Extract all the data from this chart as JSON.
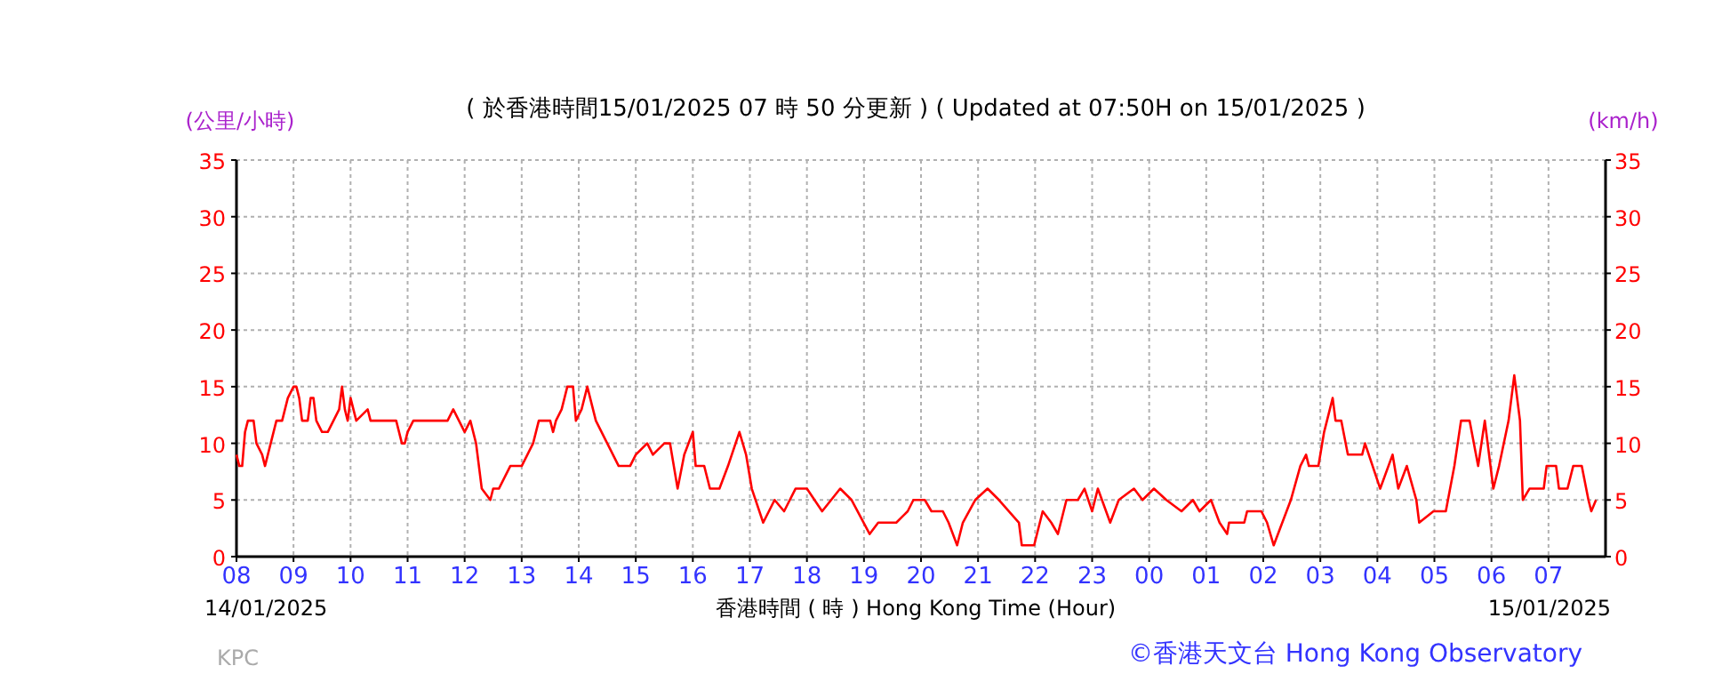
{
  "chart_data": {
    "type": "line",
    "title": "( 於香港時間15/01/2025 07 時 50 分更新 ) ( Updated at 07:50H on 15/01/2025 )",
    "xlabel": "香港時間 ( 時 ) Hong Kong Time (Hour)",
    "ylabel": "(公里/小時)",
    "y2label": "(km/h)",
    "x": [
      "2025-01-14T08:00",
      "2025-01-14T08:03",
      "2025-01-14T08:06",
      "2025-01-14T08:09",
      "2025-01-14T08:12",
      "2025-01-14T08:18",
      "2025-01-14T08:21",
      "2025-01-14T08:27",
      "2025-01-14T08:30",
      "2025-01-14T08:33",
      "2025-01-14T08:36",
      "2025-01-14T08:42",
      "2025-01-14T08:48",
      "2025-01-14T08:51",
      "2025-01-14T08:54",
      "2025-01-14T09:00",
      "2025-01-14T09:03",
      "2025-01-14T09:06",
      "2025-01-14T09:09",
      "2025-01-14T09:15",
      "2025-01-14T09:18",
      "2025-01-14T09:21",
      "2025-01-14T09:24",
      "2025-01-14T09:30",
      "2025-01-14T09:36",
      "2025-01-14T09:42",
      "2025-01-14T09:48",
      "2025-01-14T09:51",
      "2025-01-14T09:54",
      "2025-01-14T09:57",
      "2025-01-14T10:00",
      "2025-01-14T10:03",
      "2025-01-14T10:06",
      "2025-01-14T10:18",
      "2025-01-14T10:21",
      "2025-01-14T10:48",
      "2025-01-14T10:54",
      "2025-01-14T10:57",
      "2025-01-14T11:00",
      "2025-01-14T11:06",
      "2025-01-14T11:42",
      "2025-01-14T11:48",
      "2025-01-14T11:54",
      "2025-01-14T12:00",
      "2025-01-14T12:06",
      "2025-01-14T12:12",
      "2025-01-14T12:18",
      "2025-01-14T12:27",
      "2025-01-14T12:30",
      "2025-01-14T12:36",
      "2025-01-14T12:42",
      "2025-01-14T12:48",
      "2025-01-14T13:00",
      "2025-01-14T13:06",
      "2025-01-14T13:12",
      "2025-01-14T13:18",
      "2025-01-14T13:30",
      "2025-01-14T13:33",
      "2025-01-14T13:36",
      "2025-01-14T13:42",
      "2025-01-14T13:45",
      "2025-01-14T13:48",
      "2025-01-14T13:54",
      "2025-01-14T13:57",
      "2025-01-14T14:03",
      "2025-01-14T14:09",
      "2025-01-14T14:12",
      "2025-01-14T14:18",
      "2025-01-14T14:30",
      "2025-01-14T14:36",
      "2025-01-14T14:42",
      "2025-01-14T14:54",
      "2025-01-14T15:00",
      "2025-01-14T15:12",
      "2025-01-14T15:18",
      "2025-01-14T15:30",
      "2025-01-14T15:36",
      "2025-01-14T15:44",
      "2025-01-14T15:51",
      "2025-01-14T16:00",
      "2025-01-14T16:03",
      "2025-01-14T16:12",
      "2025-01-14T16:18",
      "2025-01-14T16:28",
      "2025-01-14T16:37",
      "2025-01-14T16:49",
      "2025-01-14T16:56",
      "2025-01-14T17:02",
      "2025-01-14T17:14",
      "2025-01-14T17:26",
      "2025-01-14T17:36",
      "2025-01-14T17:48",
      "2025-01-14T18:00",
      "2025-01-14T18:16",
      "2025-01-14T18:35",
      "2025-01-14T18:47",
      "2025-01-14T19:06",
      "2025-01-14T19:15",
      "2025-01-14T19:34",
      "2025-01-14T19:46",
      "2025-01-14T19:52",
      "2025-01-14T20:04",
      "2025-01-14T20:11",
      "2025-01-14T20:23",
      "2025-01-14T20:29",
      "2025-01-14T20:38",
      "2025-01-14T20:44",
      "2025-01-14T20:57",
      "2025-01-14T21:10",
      "2025-01-14T21:22",
      "2025-01-14T21:43",
      "2025-01-14T21:46",
      "2025-01-14T21:59",
      "2025-01-14T22:08",
      "2025-01-14T22:17",
      "2025-01-14T22:24",
      "2025-01-14T22:33",
      "2025-01-14T22:45",
      "2025-01-14T22:52",
      "2025-01-14T23:00",
      "2025-01-14T23:06",
      "2025-01-14T23:19",
      "2025-01-14T23:28",
      "2025-01-14T23:44",
      "2025-01-14T23:53",
      "2025-01-15T00:05",
      "2025-01-15T00:18",
      "2025-01-15T00:34",
      "2025-01-15T00:46",
      "2025-01-15T00:53",
      "2025-01-15T01:05",
      "2025-01-15T01:14",
      "2025-01-15T01:22",
      "2025-01-15T01:24",
      "2025-01-15T01:40",
      "2025-01-15T01:43",
      "2025-01-15T01:58",
      "2025-01-15T02:04",
      "2025-01-15T02:11",
      "2025-01-15T02:20",
      "2025-01-15T02:29",
      "2025-01-15T02:39",
      "2025-01-15T02:45",
      "2025-01-15T02:48",
      "2025-01-15T02:58",
      "2025-01-15T03:04",
      "2025-01-15T03:07",
      "2025-01-15T03:13",
      "2025-01-15T03:16",
      "2025-01-15T03:22",
      "2025-01-15T03:29",
      "2025-01-15T03:44",
      "2025-01-15T03:47",
      "2025-01-15T04:03",
      "2025-01-15T04:16",
      "2025-01-15T04:22",
      "2025-01-15T04:31",
      "2025-01-15T04:41",
      "2025-01-15T04:44",
      "2025-01-15T04:59",
      "2025-01-15T05:12",
      "2025-01-15T05:21",
      "2025-01-15T05:28",
      "2025-01-15T05:37",
      "2025-01-15T05:46",
      "2025-01-15T05:53",
      "2025-01-15T06:02",
      "2025-01-15T06:08",
      "2025-01-15T06:18",
      "2025-01-15T06:24",
      "2025-01-15T06:30",
      "2025-01-15T06:33",
      "2025-01-15T06:40",
      "2025-01-15T06:55",
      "2025-01-15T06:58",
      "2025-01-15T07:08",
      "2025-01-15T07:11",
      "2025-01-15T07:20",
      "2025-01-15T07:26",
      "2025-01-15T07:35",
      "2025-01-15T07:42",
      "2025-01-15T07:45",
      "2025-01-15T07:50"
    ],
    "series": [
      {
        "color": "#ff0000",
        "values": [
          9,
          8,
          8,
          11,
          12,
          12,
          10,
          9,
          8,
          9,
          10,
          12,
          12,
          13,
          14,
          15,
          15,
          14,
          12,
          12,
          14,
          14,
          12,
          11,
          11,
          12,
          13,
          15,
          13,
          12,
          14,
          13,
          12,
          13,
          12,
          12,
          10,
          10,
          11,
          12,
          12,
          13,
          12,
          11,
          12,
          10,
          6,
          5,
          6,
          6,
          7,
          8,
          8,
          9,
          10,
          12,
          12,
          11,
          12,
          13,
          14,
          15,
          15,
          12,
          13,
          15,
          14,
          12,
          10,
          9,
          8,
          8,
          9,
          10,
          9,
          10,
          10,
          6,
          9,
          11,
          8,
          8,
          6,
          6,
          8,
          11,
          9,
          6,
          3,
          5,
          4,
          6,
          6,
          4,
          6,
          5,
          2,
          3,
          3,
          4,
          5,
          5,
          4,
          4,
          3,
          1,
          3,
          5,
          6,
          5,
          3,
          1,
          1,
          4,
          3,
          2,
          5,
          5,
          6,
          4,
          6,
          3,
          5,
          6,
          5,
          6,
          5,
          4,
          5,
          4,
          5,
          3,
          2,
          3,
          3,
          4,
          4,
          3,
          1,
          3,
          5,
          8,
          9,
          8,
          8,
          11,
          12,
          14,
          12,
          12,
          9,
          9,
          10,
          6,
          9,
          6,
          8,
          5,
          3,
          4,
          4,
          8,
          12,
          12,
          8,
          12,
          6,
          8,
          12,
          16,
          12,
          5,
          6,
          6,
          8,
          8,
          6,
          6,
          8,
          8,
          5,
          4,
          5
        ]
      }
    ],
    "xlim": [
      "2025-01-14T08:00",
      "2025-01-15T08:00"
    ],
    "xticks": [
      {
        "value": "2025-01-14T08:00",
        "label": "08"
      },
      {
        "value": "2025-01-14T09:00",
        "label": "09"
      },
      {
        "value": "2025-01-14T10:00",
        "label": "10"
      },
      {
        "value": "2025-01-14T11:00",
        "label": "11"
      },
      {
        "value": "2025-01-14T12:00",
        "label": "12"
      },
      {
        "value": "2025-01-14T13:00",
        "label": "13"
      },
      {
        "value": "2025-01-14T14:00",
        "label": "14"
      },
      {
        "value": "2025-01-14T15:00",
        "label": "15"
      },
      {
        "value": "2025-01-14T16:00",
        "label": "16"
      },
      {
        "value": "2025-01-14T17:00",
        "label": "17"
      },
      {
        "value": "2025-01-14T18:00",
        "label": "18"
      },
      {
        "value": "2025-01-14T19:00",
        "label": "19"
      },
      {
        "value": "2025-01-14T20:00",
        "label": "20"
      },
      {
        "value": "2025-01-14T21:00",
        "label": "21"
      },
      {
        "value": "2025-01-14T22:00",
        "label": "22"
      },
      {
        "value": "2025-01-14T23:00",
        "label": "23"
      },
      {
        "value": "2025-01-15T00:00",
        "label": "00"
      },
      {
        "value": "2025-01-15T01:00",
        "label": "01"
      },
      {
        "value": "2025-01-15T02:00",
        "label": "02"
      },
      {
        "value": "2025-01-15T03:00",
        "label": "03"
      },
      {
        "value": "2025-01-15T04:00",
        "label": "04"
      },
      {
        "value": "2025-01-15T05:00",
        "label": "05"
      },
      {
        "value": "2025-01-15T06:00",
        "label": "06"
      },
      {
        "value": "2025-01-15T07:00",
        "label": "07"
      }
    ],
    "ylim": [
      0,
      35
    ],
    "yticks": [
      0,
      5,
      10,
      15,
      20,
      25,
      30,
      35
    ],
    "y2lim": [
      0,
      35
    ],
    "y2ticks": [
      0,
      5,
      10,
      15,
      20,
      25,
      30,
      35
    ],
    "grid": true,
    "annotations": [
      "14/01/2025",
      "15/01/2025",
      "KPC",
      "©香港天文台 Hong Kong Observatory"
    ]
  }
}
